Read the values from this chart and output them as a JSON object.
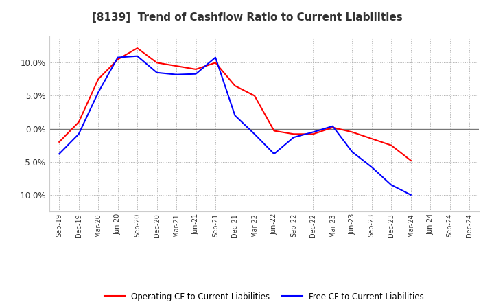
{
  "title": "[8139]  Trend of Cashflow Ratio to Current Liabilities",
  "x_labels": [
    "Sep-19",
    "Dec-19",
    "Mar-20",
    "Jun-20",
    "Sep-20",
    "Dec-20",
    "Mar-21",
    "Jun-21",
    "Sep-21",
    "Dec-21",
    "Mar-22",
    "Jun-22",
    "Sep-22",
    "Dec-22",
    "Mar-23",
    "Jun-23",
    "Sep-23",
    "Dec-23",
    "Mar-24",
    "Jun-24",
    "Sep-24",
    "Dec-24"
  ],
  "operating_cf": [
    -2.0,
    1.0,
    7.5,
    10.5,
    12.2,
    10.0,
    9.5,
    9.0,
    10.0,
    6.5,
    5.0,
    -0.3,
    -0.8,
    -0.8,
    0.2,
    -0.5,
    -1.5,
    -2.5,
    -4.8,
    null,
    null,
    null
  ],
  "free_cf": [
    -3.8,
    -0.8,
    5.5,
    10.8,
    11.0,
    8.5,
    8.2,
    8.3,
    10.8,
    2.0,
    -0.8,
    -3.8,
    -1.3,
    -0.5,
    0.4,
    -3.5,
    -5.8,
    -8.5,
    -10.0,
    null,
    null,
    null
  ],
  "ylim": [
    -12.5,
    14.0
  ],
  "yticks": [
    -10.0,
    -5.0,
    0.0,
    5.0,
    10.0
  ],
  "operating_color": "#ff0000",
  "free_color": "#0000ff",
  "background_color": "#ffffff",
  "grid_color": "#b0b0b0",
  "legend_op": "Operating CF to Current Liabilities",
  "legend_free": "Free CF to Current Liabilities"
}
